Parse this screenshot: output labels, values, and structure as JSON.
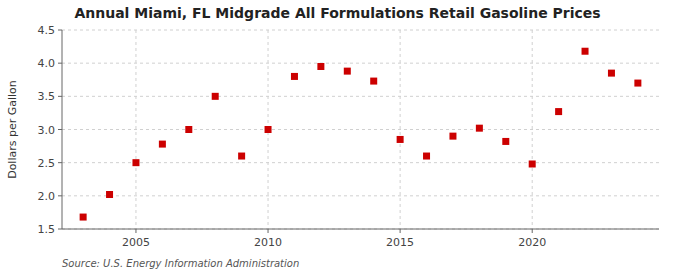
{
  "chart_data": {
    "type": "scatter",
    "title": "Annual Miami, FL Midgrade All Formulations Retail Gasoline Prices",
    "ylabel": "Dollars per Gallon",
    "source": "Source: U.S. Energy Information Administration",
    "x": [
      2003,
      2004,
      2005,
      2006,
      2007,
      2008,
      2009,
      2010,
      2011,
      2012,
      2013,
      2014,
      2015,
      2016,
      2017,
      2018,
      2019,
      2020,
      2021,
      2022,
      2023,
      2024
    ],
    "values": [
      1.68,
      2.02,
      2.5,
      2.78,
      3.0,
      3.5,
      2.6,
      3.0,
      3.8,
      3.95,
      3.88,
      3.73,
      2.85,
      2.6,
      2.9,
      3.02,
      2.82,
      2.48,
      3.27,
      4.18,
      3.85,
      3.7
    ],
    "color": "#cc0000",
    "marker": "square",
    "xlim": [
      2002.2,
      2024.8
    ],
    "xticks": [
      2005,
      2010,
      2015,
      2020
    ],
    "ylim": [
      1.5,
      4.5
    ],
    "yticks": [
      1.5,
      {
        "value": 2.0,
        "label": "2.0"
      },
      2.5,
      {
        "value": 3.0,
        "label": "3.0"
      },
      3.5,
      {
        "value": 4.0,
        "label": "4.0"
      },
      4.5
    ],
    "grid": true
  }
}
